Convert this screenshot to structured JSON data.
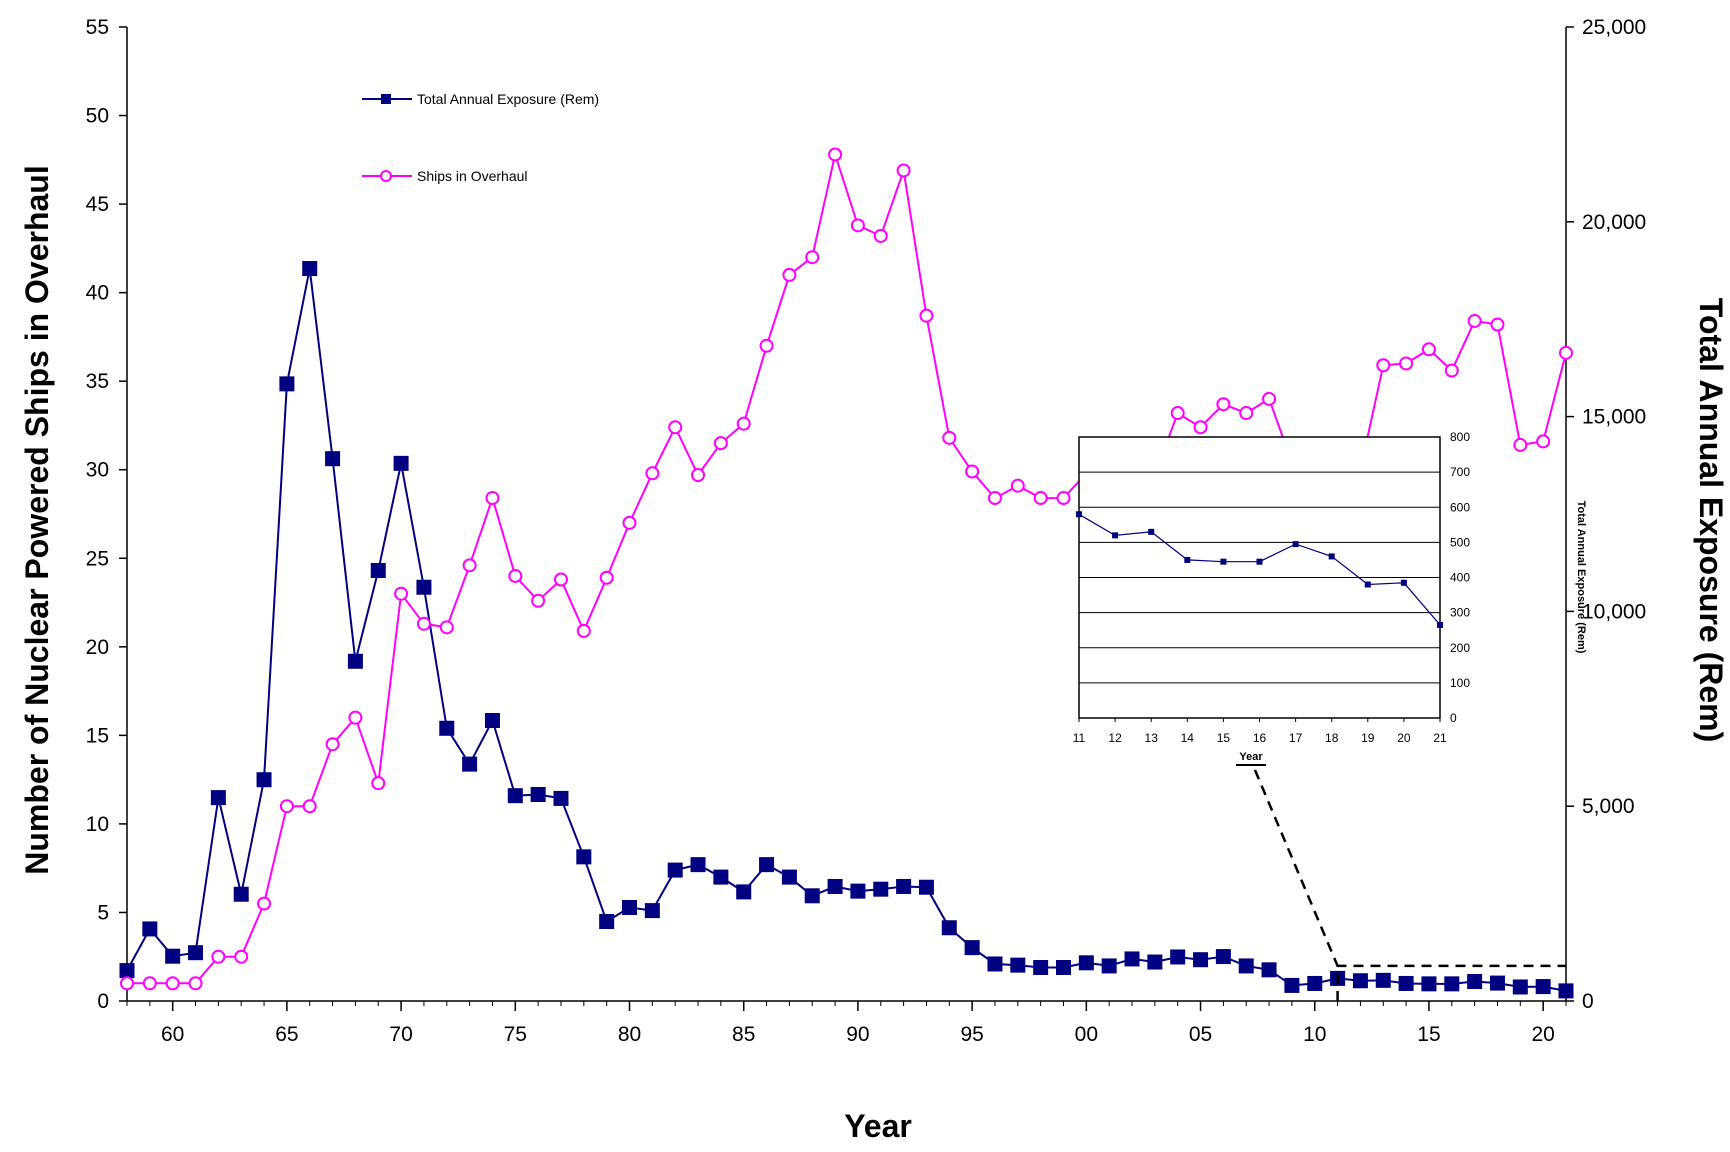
{
  "chart_data": {
    "type": "line",
    "xlabel": "Year",
    "ylabel_left": "Number of Nuclear Powered Ships in Overhaul",
    "ylabel_right": "Total Annual Exposure (Rem)",
    "x_tick_labels": [
      "60",
      "65",
      "70",
      "75",
      "80",
      "85",
      "90",
      "95",
      "00",
      "05",
      "10",
      "15",
      "20"
    ],
    "x_tick_years": [
      1960,
      1965,
      1970,
      1975,
      1980,
      1985,
      1990,
      1995,
      2000,
      2005,
      2010,
      2015,
      2020
    ],
    "xlim": [
      1958,
      2021
    ],
    "ylim_left": [
      0,
      55
    ],
    "ylim_right": [
      0,
      25000
    ],
    "left_ticks": [
      "0",
      "5",
      "10",
      "15",
      "20",
      "25",
      "30",
      "35",
      "40",
      "45",
      "50",
      "55"
    ],
    "right_ticks": [
      "0",
      "5,000",
      "10,000",
      "15,000",
      "20,000",
      "25,000"
    ],
    "legend_placement": "upper-left",
    "grid": false,
    "series": [
      {
        "name": "Total Annual Exposure (Rem)",
        "axis": "right",
        "color": "#000080",
        "marker": "filled-square",
        "x": [
          1958,
          1959,
          1960,
          1961,
          1962,
          1963,
          1964,
          1965,
          1966,
          1967,
          1968,
          1969,
          1970,
          1971,
          1972,
          1973,
          1974,
          1975,
          1976,
          1977,
          1978,
          1979,
          1980,
          1981,
          1982,
          1983,
          1984,
          1985,
          1986,
          1987,
          1988,
          1989,
          1990,
          1991,
          1992,
          1993,
          1994,
          1995,
          1996,
          1997,
          1998,
          1999,
          2000,
          2001,
          2002,
          2003,
          2004,
          2005,
          2006,
          2007,
          2008,
          2009,
          2010,
          2011,
          2012,
          2013,
          2014,
          2015,
          2016,
          2017,
          2018,
          2019,
          2020,
          2021
        ],
        "values": [
          780,
          1850,
          1150,
          1240,
          5220,
          2740,
          5680,
          15840,
          18800,
          13920,
          8720,
          11050,
          13800,
          10620,
          7000,
          6080,
          7200,
          5270,
          5300,
          5200,
          3700,
          2040,
          2400,
          2320,
          3360,
          3500,
          3180,
          2800,
          3500,
          3180,
          2700,
          2940,
          2820,
          2870,
          2940,
          2920,
          1880,
          1370,
          950,
          920,
          860,
          860,
          980,
          900,
          1080,
          1000,
          1130,
          1060,
          1140,
          900,
          800,
          400,
          450,
          580,
          520,
          530,
          450,
          440,
          440,
          500,
          460,
          360,
          370,
          260
        ]
      },
      {
        "name": "Ships in Overhaul",
        "axis": "left",
        "color": "#ff00ff",
        "marker": "open-circle",
        "x": [
          1958,
          1959,
          1960,
          1961,
          1962,
          1963,
          1964,
          1965,
          1966,
          1967,
          1968,
          1969,
          1970,
          1971,
          1972,
          1973,
          1974,
          1975,
          1976,
          1977,
          1978,
          1979,
          1980,
          1981,
          1982,
          1983,
          1984,
          1985,
          1986,
          1987,
          1988,
          1989,
          1990,
          1991,
          1992,
          1993,
          1994,
          1995,
          1996,
          1997,
          1998,
          1999,
          2000,
          2001,
          2002,
          2003,
          2004,
          2005,
          2006,
          2007,
          2008,
          2009,
          2010,
          2011,
          2012,
          2013,
          2014,
          2015,
          2016,
          2017,
          2018,
          2019,
          2020,
          2021
        ],
        "values": [
          1,
          1,
          1,
          1,
          2.5,
          2.5,
          5.5,
          11,
          11,
          14.5,
          16,
          12.3,
          23,
          21.3,
          21.1,
          24.6,
          28.4,
          24,
          22.6,
          23.8,
          20.9,
          23.9,
          27,
          29.8,
          32.4,
          29.7,
          31.5,
          32.6,
          37,
          41,
          42,
          47.8,
          43.8,
          43.2,
          46.9,
          38.7,
          31.8,
          29.9,
          28.4,
          29.1,
          28.4,
          28.4,
          29.8,
          26.5,
          30.2,
          29.7,
          33.2,
          32.4,
          33.7,
          33.2,
          34,
          30.4,
          30.8,
          31.1,
          30,
          35.9,
          36,
          36.8,
          35.6,
          38.4,
          38.2,
          31.4,
          31.6,
          36.6
        ]
      }
    ],
    "inset": {
      "type": "line",
      "xlabel": "Year",
      "ylabel": "Total Annual Exposure (Rem)",
      "categories": [
        "11",
        "12",
        "13",
        "14",
        "15",
        "16",
        "17",
        "18",
        "19",
        "20",
        "21"
      ],
      "values": [
        580,
        520,
        530,
        450,
        445,
        445,
        495,
        460,
        380,
        385,
        265
      ],
      "ylim": [
        0,
        800
      ],
      "y_ticks": [
        "0",
        "100",
        "200",
        "300",
        "400",
        "500",
        "600",
        "700",
        "800"
      ],
      "grid": true,
      "color": "#000080",
      "marker": "small-square",
      "callout_from_year": 2011
    }
  }
}
